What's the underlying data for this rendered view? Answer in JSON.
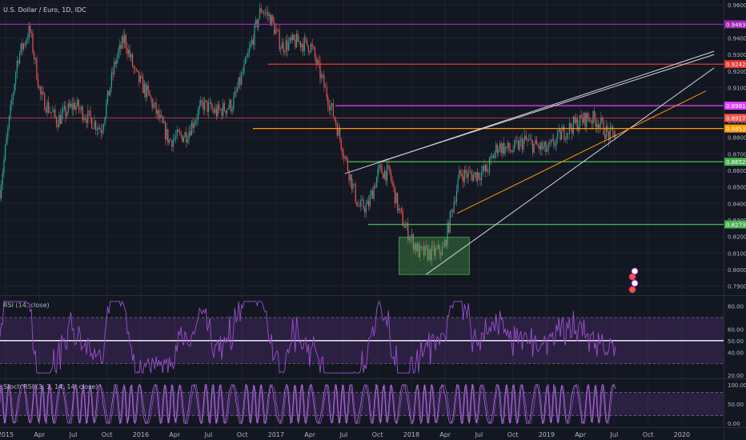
{
  "header": {
    "symbol_title": "U.S. Dollar / Euro, 1D, IDC"
  },
  "rsi_panel": {
    "label": "RSI (14, close)",
    "ticks": [
      "80.00",
      "60.00",
      "50.00",
      "40.00",
      "20.00"
    ]
  },
  "stoch_panel": {
    "label": "Stoch RSI (3, 3, 14, 14, close)",
    "ticks": [
      "100.00",
      "50.00",
      "0.00"
    ]
  },
  "colors": {
    "background": "#131722",
    "up": "#26a69a",
    "down": "#ef5350",
    "purple": "#9c27b0",
    "red": "#e53935",
    "magenta": "#e040fb",
    "orange": "#ff9800",
    "green": "#4caf50",
    "grid": "#1e222d",
    "rsi": "#9c4fd0",
    "stoch": "#9c4fd0"
  },
  "chart_data": [
    {
      "type": "candlestick",
      "title": "U.S. Dollar / Euro, 1D, IDC",
      "x_ticks": [
        "2015",
        "Apr",
        "Jul",
        "Oct",
        "2016",
        "Apr",
        "Jul",
        "Oct",
        "2017",
        "Apr",
        "Jul",
        "Oct",
        "2018",
        "Apr",
        "Jul",
        "Oct",
        "2019",
        "Apr",
        "Jul",
        "Oct",
        "2020"
      ],
      "y_ticks": [
        "0.9600",
        "0.9400",
        "0.9300",
        "0.9200",
        "0.9100",
        "0.9000",
        "0.8900",
        "0.8800",
        "0.8700",
        "0.8600",
        "0.8500",
        "0.8400",
        "0.8300",
        "0.8200",
        "0.8100",
        "0.8000",
        "0.7900"
      ],
      "ylim": [
        0.785,
        0.963
      ],
      "xlim": [
        2015.0,
        2020.35
      ],
      "price_path": [
        [
          2015.0,
          0.848
        ],
        [
          2015.06,
          0.885
        ],
        [
          2015.13,
          0.928
        ],
        [
          2015.22,
          0.945
        ],
        [
          2015.3,
          0.905
        ],
        [
          2015.42,
          0.89
        ],
        [
          2015.55,
          0.9
        ],
        [
          2015.65,
          0.892
        ],
        [
          2015.75,
          0.885
        ],
        [
          2015.85,
          0.925
        ],
        [
          2015.92,
          0.94
        ],
        [
          2016.0,
          0.918
        ],
        [
          2016.1,
          0.905
        ],
        [
          2016.25,
          0.878
        ],
        [
          2016.38,
          0.882
        ],
        [
          2016.5,
          0.9
        ],
        [
          2016.6,
          0.895
        ],
        [
          2016.72,
          0.9
        ],
        [
          2016.82,
          0.925
        ],
        [
          2016.93,
          0.958
        ],
        [
          2017.0,
          0.952
        ],
        [
          2017.08,
          0.935
        ],
        [
          2017.2,
          0.938
        ],
        [
          2017.3,
          0.935
        ],
        [
          2017.38,
          0.915
        ],
        [
          2017.48,
          0.89
        ],
        [
          2017.56,
          0.865
        ],
        [
          2017.65,
          0.838
        ],
        [
          2017.72,
          0.838
        ],
        [
          2017.8,
          0.86
        ],
        [
          2017.88,
          0.858
        ],
        [
          2017.95,
          0.835
        ],
        [
          2018.0,
          0.825
        ],
        [
          2018.1,
          0.81
        ],
        [
          2018.2,
          0.81
        ],
        [
          2018.28,
          0.812
        ],
        [
          2018.32,
          0.828
        ],
        [
          2018.4,
          0.858
        ],
        [
          2018.5,
          0.857
        ],
        [
          2018.6,
          0.86
        ],
        [
          2018.68,
          0.875
        ],
        [
          2018.78,
          0.872
        ],
        [
          2018.88,
          0.878
        ],
        [
          2018.95,
          0.875
        ],
        [
          2019.05,
          0.872
        ],
        [
          2019.15,
          0.882
        ],
        [
          2019.25,
          0.888
        ],
        [
          2019.35,
          0.892
        ],
        [
          2019.42,
          0.89
        ],
        [
          2019.5,
          0.881
        ],
        [
          2019.55,
          0.883
        ]
      ],
      "annotations": {
        "price_labels": [
          {
            "text": "0.9483",
            "value": 0.9483,
            "color": "#9c27b0"
          },
          {
            "text": "0.9242",
            "value": 0.9242,
            "color": "#e53935"
          },
          {
            "text": "0.8991",
            "value": 0.8991,
            "color": "#e040fb"
          },
          {
            "text": "0.8917",
            "value": 0.8917,
            "color": "#ef5350"
          },
          {
            "text": "0.8853",
            "value": 0.8853,
            "color": "#ff9800"
          },
          {
            "text": "0.8652",
            "value": 0.8652,
            "color": "#4caf50"
          },
          {
            "text": "0.8273",
            "value": 0.8273,
            "color": "#4caf50"
          }
        ],
        "horizontal_lines": [
          {
            "value": 0.9483,
            "from": 2015.0,
            "color": "#9c27b0"
          },
          {
            "value": 0.9242,
            "from": 2016.98,
            "color": "#e53935"
          },
          {
            "value": 0.8991,
            "from": 2017.48,
            "color": "#e040fb"
          },
          {
            "value": 0.8917,
            "from": 2015.0,
            "color": "#ef5350",
            "thin": true
          },
          {
            "value": 0.8853,
            "from": 2016.87,
            "color": "#ff9800"
          },
          {
            "value": 0.8652,
            "from": 2017.57,
            "color": "#4caf50"
          },
          {
            "value": 0.8273,
            "from": 2017.72,
            "color": "#4caf50"
          }
        ],
        "trend_lines": [
          {
            "from": [
              2017.55,
              0.858
            ],
            "to": [
              2020.28,
              0.932
            ],
            "color": "#d1d4dc"
          },
          {
            "from": [
              2017.8,
              0.865
            ],
            "to": [
              2020.28,
              0.93
            ],
            "color": "#d1d4dc"
          },
          {
            "from": [
              2018.15,
              0.797
            ],
            "to": [
              2020.28,
              0.922
            ],
            "color": "#d1d4dc"
          },
          {
            "from": [
              2018.38,
              0.834
            ],
            "to": [
              2020.22,
              0.908
            ],
            "color": "#ff9800"
          }
        ],
        "box": {
          "x0": 2017.95,
          "x1": 2018.47,
          "y0": 0.797,
          "y1": 0.8195,
          "color": "#4caf50"
        }
      }
    },
    {
      "type": "line",
      "title": "RSI (14, close)",
      "y_ticks": [
        80,
        60,
        50,
        40,
        20
      ],
      "ylim": [
        18,
        88
      ],
      "band": [
        30,
        70
      ],
      "midline": 50
    },
    {
      "type": "line",
      "title": "Stoch RSI (3, 3, 14, 14, close)",
      "y_ticks": [
        100,
        50,
        0
      ],
      "ylim": [
        -8,
        112
      ],
      "band": [
        20,
        80
      ]
    }
  ]
}
